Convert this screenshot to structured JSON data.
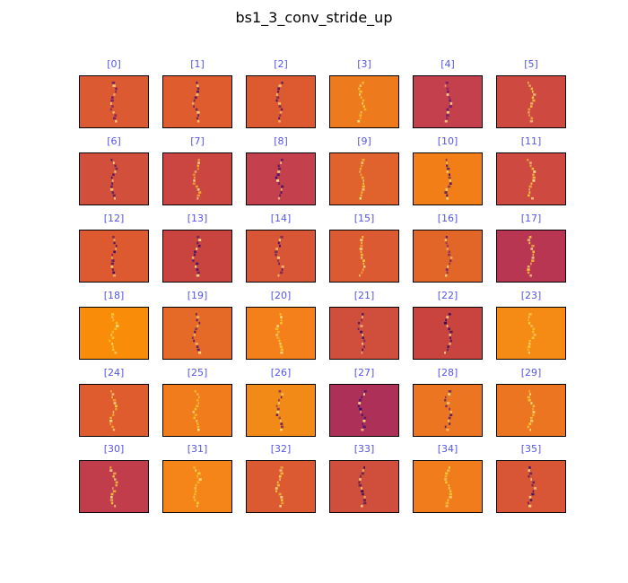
{
  "title": "bs1_3_conv_stride_up",
  "label_color": "#5555ee",
  "colormap": "inferno",
  "chart_data": {
    "type": "heatmap",
    "title": "bs1_3_conv_stride_up",
    "layout": "6x6 grid of feature-map channels",
    "panels": [
      {
        "label": "[0]",
        "bg": "#dc5a32",
        "feature": "#6b1a6e"
      },
      {
        "label": "[1]",
        "bg": "#df5c2e",
        "feature": "#3b0f6f"
      },
      {
        "label": "[2]",
        "bg": "#dd5a30",
        "feature": "#4a1070"
      },
      {
        "label": "[3]",
        "bg": "#ee7a1e",
        "feature": "#f8c932"
      },
      {
        "label": "[4]",
        "bg": "#c3404c",
        "feature": "#6b1a6e"
      },
      {
        "label": "[5]",
        "bg": "#ce4a40",
        "feature": "#f8d13a"
      },
      {
        "label": "[6]",
        "bg": "#d2503b",
        "feature": "#3b0f6f"
      },
      {
        "label": "[7]",
        "bg": "#cb4641",
        "feature": "#f7b92c"
      },
      {
        "label": "[8]",
        "bg": "#c3404c",
        "feature": "#3b0f6f"
      },
      {
        "label": "[9]",
        "bg": "#e0622c",
        "feature": "#f8c932"
      },
      {
        "label": "[10]",
        "bg": "#f27e18",
        "feature": "#4a1070"
      },
      {
        "label": "[11]",
        "bg": "#ce4a40",
        "feature": "#f8d13a"
      },
      {
        "label": "[12]",
        "bg": "#dd5a30",
        "feature": "#3b0f6f"
      },
      {
        "label": "[13]",
        "bg": "#c9443f",
        "feature": "#3b0f6f"
      },
      {
        "label": "[14]",
        "bg": "#d85535",
        "feature": "#4a1070"
      },
      {
        "label": "[15]",
        "bg": "#dc5a32",
        "feature": "#f8c932"
      },
      {
        "label": "[16]",
        "bg": "#e36629",
        "feature": "#6b1a6e"
      },
      {
        "label": "[17]",
        "bg": "#b93652",
        "feature": "#f8c932"
      },
      {
        "label": "[18]",
        "bg": "#f98d0a",
        "feature": "#f8d13a"
      },
      {
        "label": "[19]",
        "bg": "#e66a27",
        "feature": "#4a1070"
      },
      {
        "label": "[20]",
        "bg": "#f3801a",
        "feature": "#f8c932"
      },
      {
        "label": "[21]",
        "bg": "#d04e3c",
        "feature": "#3b0f6f"
      },
      {
        "label": "[22]",
        "bg": "#c9443f",
        "feature": "#2a0a5e"
      },
      {
        "label": "[23]",
        "bg": "#f58a14",
        "feature": "#f8d13a"
      },
      {
        "label": "[24]",
        "bg": "#df5c2e",
        "feature": "#f8c932"
      },
      {
        "label": "[25]",
        "bg": "#f07c1c",
        "feature": "#f8c932"
      },
      {
        "label": "[26]",
        "bg": "#f28a18",
        "feature": "#6b1a6e"
      },
      {
        "label": "[27]",
        "bg": "#ad3058",
        "feature": "#3b0f6f"
      },
      {
        "label": "[28]",
        "bg": "#ec7521",
        "feature": "#4a1070"
      },
      {
        "label": "[29]",
        "bg": "#ec7521",
        "feature": "#f8c932"
      },
      {
        "label": "[30]",
        "bg": "#c13d4c",
        "feature": "#f8d13a"
      },
      {
        "label": "[31]",
        "bg": "#f58518",
        "feature": "#f8d13a"
      },
      {
        "label": "[32]",
        "bg": "#dc5a32",
        "feature": "#f8d13a"
      },
      {
        "label": "[33]",
        "bg": "#d04e3c",
        "feature": "#2a0a5e"
      },
      {
        "label": "[34]",
        "bg": "#f07c1c",
        "feature": "#f8d13a"
      },
      {
        "label": "[35]",
        "bg": "#d85535",
        "feature": "#3b0f6f"
      }
    ]
  }
}
